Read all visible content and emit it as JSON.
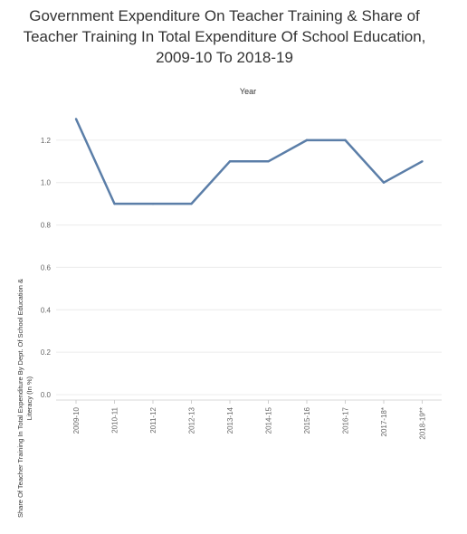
{
  "chart_data": {
    "type": "line",
    "title_lines": [
      "Government Expenditure On Teacher Training & Share of",
      "Teacher Training In Total Expenditure Of School Education,",
      "2009-10 To 2018-19"
    ],
    "xlabel": "Year",
    "ylabel_lines": [
      "Share Of Teacher Training In Total Expenditure By Dept. Of School Education &",
      "Literacy (In %)"
    ],
    "categories": [
      "2009-10",
      "2010-11",
      "2011-12",
      "2012-13",
      "2013-14",
      "2014-15",
      "2015-16",
      "2016-17",
      "2017-18*",
      "2018-19**"
    ],
    "values": [
      1.3,
      0.9,
      0.9,
      0.9,
      1.1,
      1.1,
      1.2,
      1.2,
      1.0,
      1.1
    ],
    "yticks": [
      "0.0",
      "0.2",
      "0.4",
      "0.6",
      "0.8",
      "1.0",
      "1.2"
    ],
    "ylim": [
      0,
      1.4
    ],
    "grid": true,
    "line_color": "#5b7ea8"
  }
}
